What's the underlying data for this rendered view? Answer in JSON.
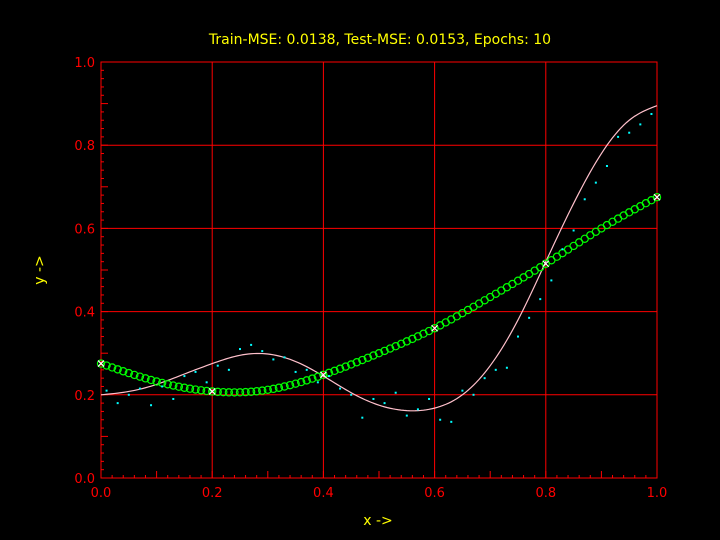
{
  "chart_data": {
    "type": "scatter",
    "title": "Train-MSE: 0.0138, Test-MSE: 0.0153, Epochs: 10",
    "xlabel": "x ->",
    "ylabel": "y ->",
    "xlim": [
      0,
      1
    ],
    "ylim": [
      0,
      1
    ],
    "xticks": [
      "0.0",
      "0.2",
      "0.4",
      "0.6",
      "0.8",
      "1.0"
    ],
    "yticks": [
      "0.0",
      "0.2",
      "0.4",
      "0.6",
      "0.8",
      "1.0"
    ],
    "grid": true,
    "colors": {
      "background": "#000000",
      "axes_and_grid": "#ff0000",
      "text": "#ffff00",
      "true_function": "#ffc0cb",
      "prediction_markers": "#00ff00",
      "noisy_samples": "#00ffff",
      "center_markers": "#ffffff"
    },
    "series": [
      {
        "style": "line",
        "x": [
          0.0,
          0.05,
          0.1,
          0.15,
          0.2,
          0.25,
          0.3,
          0.35,
          0.4,
          0.45,
          0.5,
          0.55,
          0.6,
          0.65,
          0.7,
          0.75,
          0.8,
          0.85,
          0.9,
          0.95,
          1.0
        ],
        "y": [
          0.2,
          0.208,
          0.225,
          0.25,
          0.275,
          0.295,
          0.298,
          0.28,
          0.245,
          0.205,
          0.175,
          0.162,
          0.168,
          0.2,
          0.27,
          0.38,
          0.52,
          0.66,
          0.78,
          0.86,
          0.895
        ]
      },
      {
        "style": "circle-markers",
        "x": [
          0.0,
          0.1,
          0.2,
          0.3,
          0.4,
          0.5,
          0.6,
          0.7,
          0.8,
          0.9,
          1.0
        ],
        "y": [
          0.275,
          0.232,
          0.208,
          0.212,
          0.248,
          0.3,
          0.36,
          0.435,
          0.515,
          0.6,
          0.675
        ]
      },
      {
        "style": "dots",
        "x": [
          0.01,
          0.03,
          0.05,
          0.07,
          0.09,
          0.11,
          0.13,
          0.15,
          0.17,
          0.19,
          0.21,
          0.23,
          0.25,
          0.27,
          0.29,
          0.31,
          0.33,
          0.35,
          0.37,
          0.39,
          0.41,
          0.43,
          0.45,
          0.47,
          0.49,
          0.51,
          0.53,
          0.55,
          0.57,
          0.59,
          0.61,
          0.63,
          0.65,
          0.67,
          0.69,
          0.71,
          0.73,
          0.75,
          0.77,
          0.79,
          0.81,
          0.83,
          0.85,
          0.87,
          0.89,
          0.91,
          0.93,
          0.95,
          0.97,
          0.99
        ],
        "y": [
          0.21,
          0.18,
          0.2,
          0.215,
          0.175,
          0.22,
          0.19,
          0.245,
          0.255,
          0.23,
          0.27,
          0.26,
          0.31,
          0.32,
          0.305,
          0.285,
          0.29,
          0.255,
          0.26,
          0.23,
          0.245,
          0.215,
          0.2,
          0.145,
          0.19,
          0.18,
          0.205,
          0.15,
          0.165,
          0.19,
          0.14,
          0.135,
          0.21,
          0.2,
          0.24,
          0.26,
          0.265,
          0.34,
          0.385,
          0.43,
          0.475,
          0.55,
          0.595,
          0.67,
          0.71,
          0.75,
          0.82,
          0.83,
          0.85,
          0.875
        ]
      },
      {
        "style": "x-markers",
        "x": [
          0.0,
          0.2,
          0.4,
          0.6,
          0.8,
          1.0
        ],
        "y": [
          0.275,
          0.208,
          0.248,
          0.36,
          0.515,
          0.675
        ]
      }
    ]
  }
}
